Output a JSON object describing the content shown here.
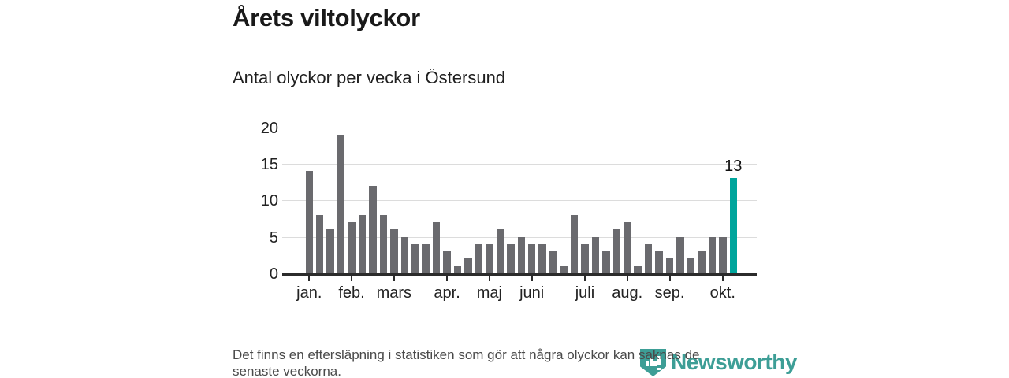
{
  "header": {
    "title": "Årets viltolyckor",
    "subtitle": "Antal olyckor per vecka i Östersund"
  },
  "chart_data": {
    "type": "bar",
    "title": "Årets viltolyckor",
    "subtitle": "Antal olyckor per vecka i Östersund",
    "x_unit": "vecka",
    "values": [
      14,
      8,
      6,
      19,
      7,
      8,
      12,
      8,
      6,
      5,
      4,
      4,
      7,
      3,
      1,
      2,
      4,
      4,
      6,
      4,
      5,
      4,
      4,
      3,
      1,
      8,
      4,
      5,
      3,
      6,
      7,
      1,
      4,
      3,
      2,
      5,
      2,
      3,
      5,
      5,
      13
    ],
    "highlight_index": 40,
    "highlight_label": "13",
    "y_ticks": [
      0,
      5,
      10,
      15,
      20
    ],
    "ylim": [
      0,
      20
    ],
    "grid": true,
    "legend_position": "none",
    "month_ticks": [
      {
        "index": 0,
        "label": "jan."
      },
      {
        "index": 4,
        "label": "feb."
      },
      {
        "index": 8,
        "label": "mars"
      },
      {
        "index": 13,
        "label": "apr."
      },
      {
        "index": 17,
        "label": "maj"
      },
      {
        "index": 21,
        "label": "juni"
      },
      {
        "index": 26,
        "label": "juli"
      },
      {
        "index": 30,
        "label": "aug."
      },
      {
        "index": 34,
        "label": "sep."
      },
      {
        "index": 39,
        "label": "okt."
      }
    ],
    "colors": {
      "bar": "#6a6a6e",
      "highlight": "#00a59c",
      "gridline": "#dcdcdc",
      "axis": "#2b2b2b"
    }
  },
  "footer": {
    "lines": [
      "Det finns en eftersläpning i statistiken som gör att några olyckor kan saknas de",
      "senaste veckorna."
    ],
    "brand": "Newsworthy"
  }
}
